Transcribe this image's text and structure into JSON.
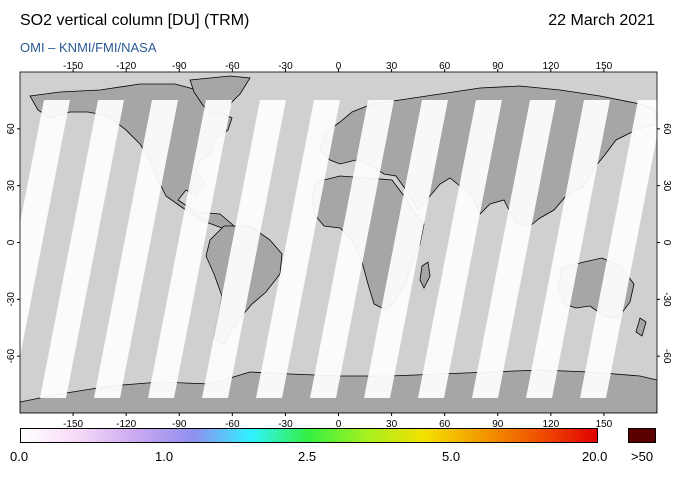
{
  "header": {
    "title": "SO2 vertical column [DU] (TRM)",
    "date": "22 March 2021",
    "subtitle": "OMI  –  KNMI/FMI/NASA"
  },
  "map": {
    "lon_ticks": [
      "-150",
      "-120",
      "-90",
      "-60",
      "-30",
      "0",
      "30",
      "60",
      "90",
      "120",
      "150"
    ],
    "lat_ticks": [
      "60",
      "30",
      "0",
      "-30",
      "-60"
    ],
    "colors": {
      "ocean": "#d0d0d0",
      "land": "#a6a6a6",
      "swath": "#ffffff",
      "coast": "#000000"
    }
  },
  "colorbar": {
    "labels": [
      "0.0",
      "1.0",
      "2.5",
      "5.0",
      "20.0"
    ],
    "over_label": ">50",
    "colors": [
      "#ffffff",
      "#f7d9f7",
      "#caa9f0",
      "#8f8ff0",
      "#2ff2ff",
      "#35f040",
      "#a6f020",
      "#f4e000",
      "#f39a00",
      "#f05000",
      "#e00000"
    ],
    "over_color": "#5a0000"
  }
}
